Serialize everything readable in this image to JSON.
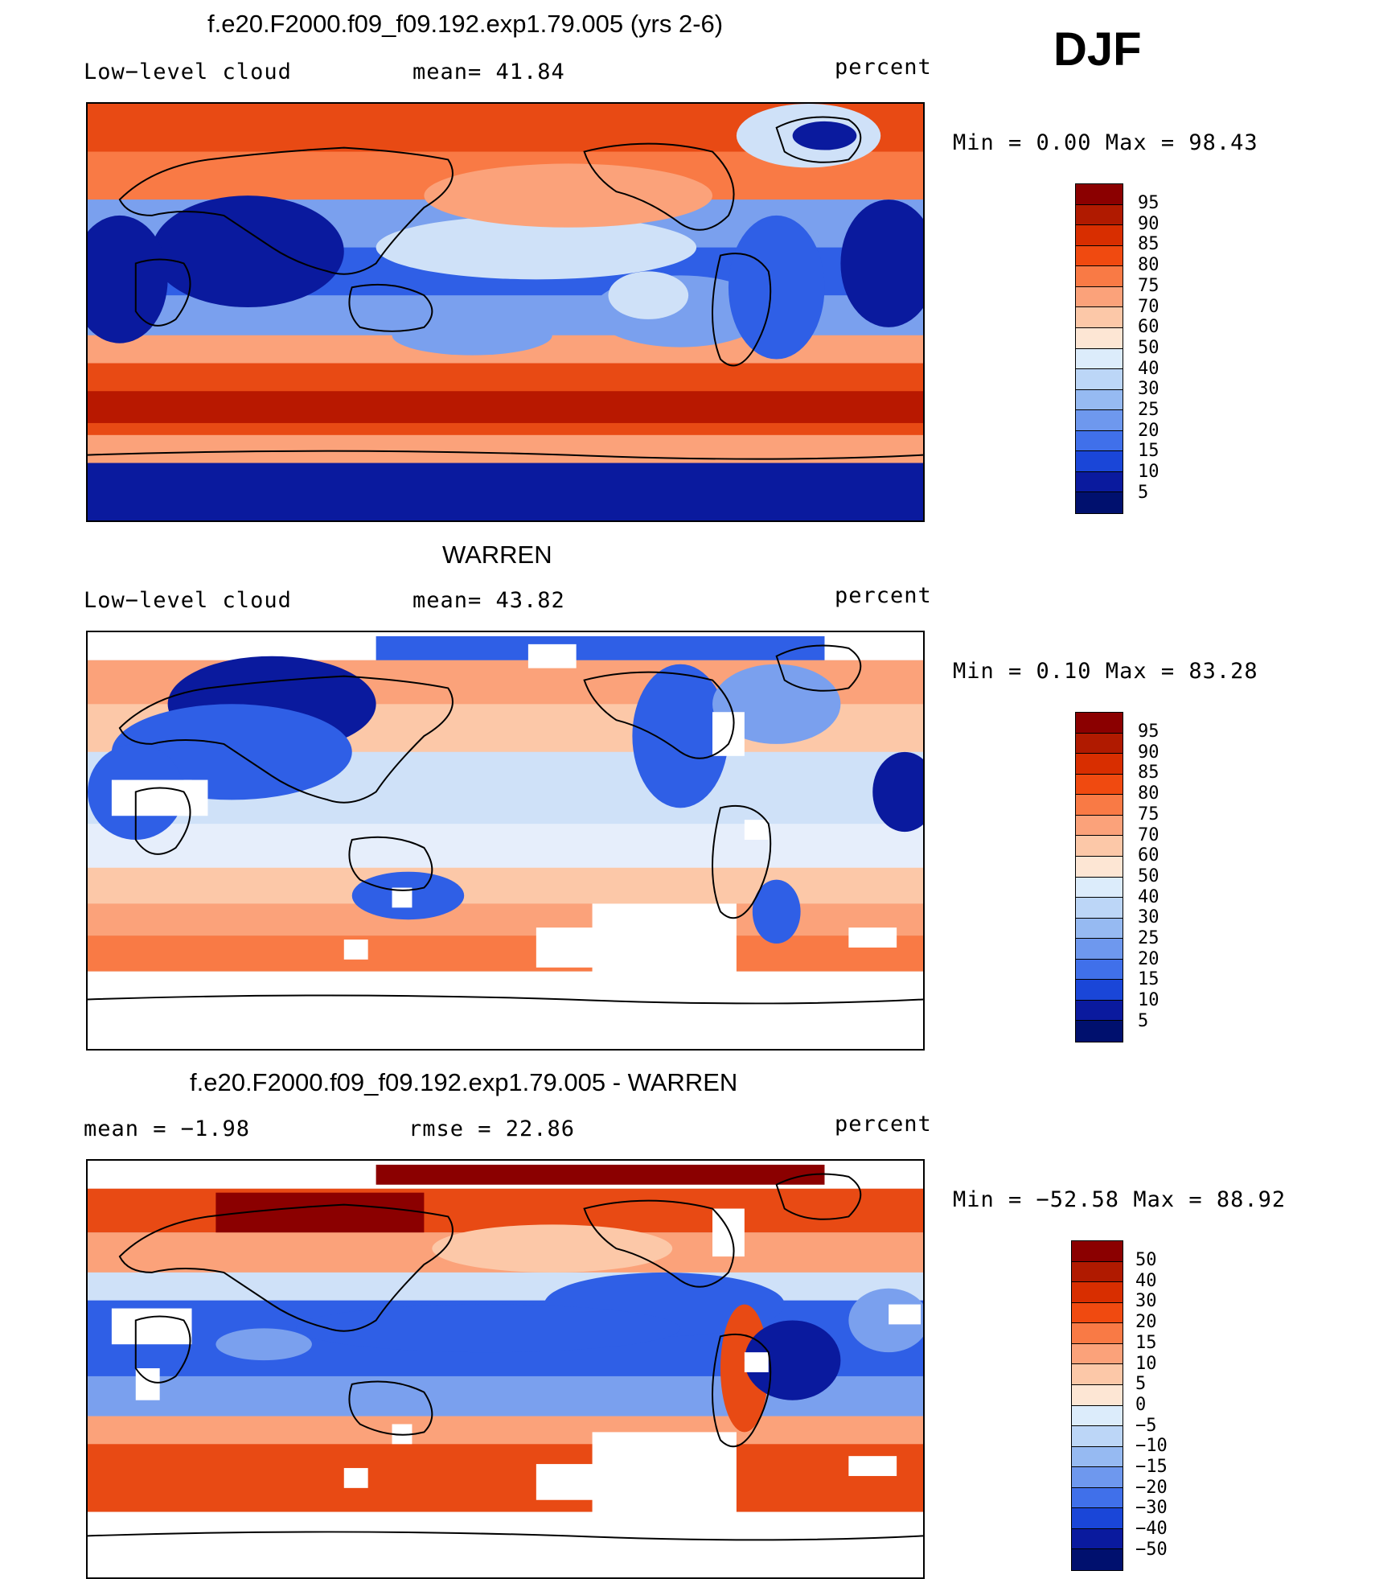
{
  "season": "DJF",
  "panels": [
    {
      "title": "f.e20.F2000.f09_f09.192.exp1.79.005 (yrs 2-6)",
      "left_label": "Low−level cloud",
      "center_label": "mean=   41.84",
      "units": "percent",
      "minmax": "Min =    0.00 Max =   98.43"
    },
    {
      "title": "WARREN",
      "left_label": "Low−level cloud",
      "center_label": "mean=   43.82",
      "units": "percent",
      "minmax": "Min =    0.10 Max =   83.28"
    },
    {
      "title": "f.e20.F2000.f09_f09.192.exp1.79.005 - WARREN",
      "left_label": "mean =   −1.98",
      "center_label": "rmse =   22.86",
      "units": "percent",
      "minmax": "Min = −52.58 Max =   88.92"
    }
  ],
  "colorbars": [
    {
      "labels": [
        "95",
        "90",
        "85",
        "80",
        "75",
        "70",
        "60",
        "50",
        "40",
        "30",
        "25",
        "20",
        "15",
        "10",
        "5"
      ],
      "colors": [
        "#8b0000",
        "#b01a00",
        "#d82e00",
        "#f04a10",
        "#f97a45",
        "#fba27a",
        "#fcc8a8",
        "#fde6d4",
        "#dcecfb",
        "#bcd6f7",
        "#96baf2",
        "#6e98ee",
        "#4070ea",
        "#1a46d8",
        "#0a1a9e",
        "#00106e"
      ]
    },
    {
      "labels": [
        "95",
        "90",
        "85",
        "80",
        "75",
        "70",
        "60",
        "50",
        "40",
        "30",
        "25",
        "20",
        "15",
        "10",
        "5"
      ],
      "colors": [
        "#8b0000",
        "#b01a00",
        "#d82e00",
        "#f04a10",
        "#f97a45",
        "#fba27a",
        "#fcc8a8",
        "#fde6d4",
        "#dcecfb",
        "#bcd6f7",
        "#96baf2",
        "#6e98ee",
        "#4070ea",
        "#1a46d8",
        "#0a1a9e",
        "#00106e"
      ]
    },
    {
      "labels": [
        "50",
        "40",
        "30",
        "20",
        "15",
        "10",
        "5",
        "0",
        "−5",
        "−10",
        "−15",
        "−20",
        "−30",
        "−40",
        "−50"
      ],
      "colors": [
        "#8b0000",
        "#b01a00",
        "#d82e00",
        "#f04a10",
        "#f97a45",
        "#fba27a",
        "#fcc8a8",
        "#fde6d4",
        "#dcecfb",
        "#bcd6f7",
        "#96baf2",
        "#6e98ee",
        "#4070ea",
        "#1a46d8",
        "#0a1a9e",
        "#00106e"
      ]
    }
  ],
  "map_palette": {
    "deep_red": "#b81800",
    "red": "#e84a14",
    "orange": "#f97a45",
    "salmon": "#fba27a",
    "peach": "#fcc8a8",
    "light_blue": "#cfe1f8",
    "mid_blue": "#7aa0ee",
    "blue": "#2f5fe6",
    "dark_blue": "#0a1a9e",
    "missing": "#ffffff"
  }
}
